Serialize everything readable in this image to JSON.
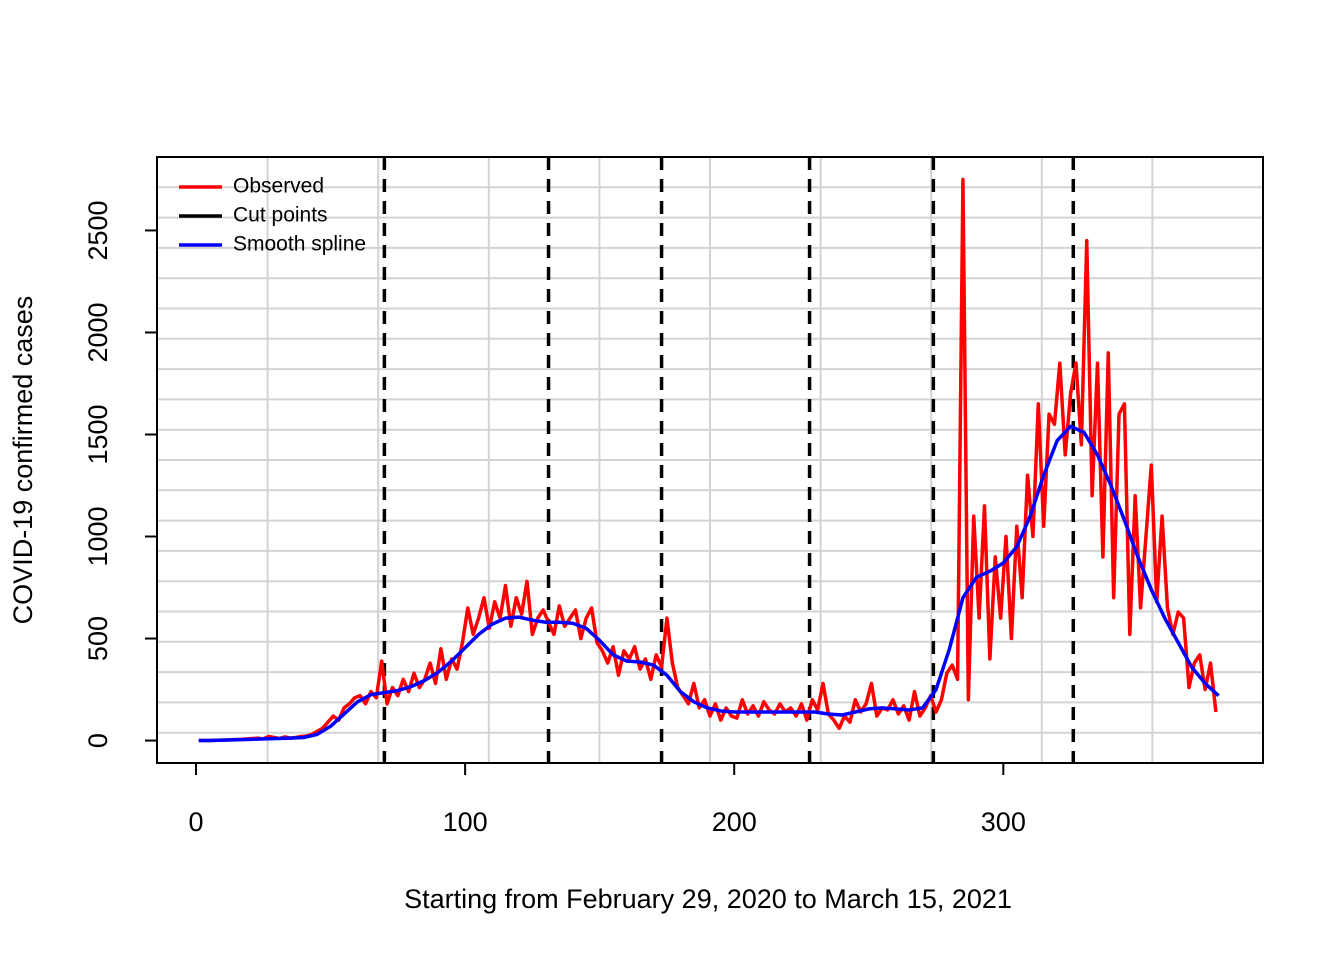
{
  "chart_data": {
    "type": "line",
    "xlabel": "Starting from February 29, 2020 to March 15, 2021",
    "ylabel": "COVID-19 confirmed cases",
    "xlim": [
      -14.5,
      396.5
    ],
    "ylim": [
      -110,
      2860
    ],
    "xticks": [
      0,
      100,
      200,
      300
    ],
    "yticks": [
      0,
      500,
      1000,
      1500,
      2000,
      2500
    ],
    "grid": {
      "nx": 10,
      "ny": 20,
      "color": "#d3d3d3"
    },
    "legend": "top-left",
    "series": [
      {
        "name": "Observed",
        "color": "#ff0000",
        "style": "line",
        "x": [
          1,
          3,
          5,
          7,
          9,
          11,
          13,
          15,
          17,
          19,
          21,
          23,
          25,
          27,
          29,
          31,
          33,
          35,
          37,
          39,
          41,
          43,
          45,
          47,
          49,
          51,
          53,
          55,
          57,
          59,
          61,
          63,
          65,
          67,
          69,
          71,
          73,
          75,
          77,
          79,
          81,
          83,
          85,
          87,
          89,
          91,
          93,
          95,
          97,
          99,
          101,
          103,
          105,
          107,
          109,
          111,
          113,
          115,
          117,
          119,
          121,
          123,
          125,
          127,
          129,
          131,
          133,
          135,
          137,
          139,
          141,
          143,
          145,
          147,
          149,
          151,
          153,
          155,
          157,
          159,
          161,
          163,
          165,
          167,
          169,
          171,
          173,
          175,
          177,
          179,
          181,
          183,
          185,
          187,
          189,
          191,
          193,
          195,
          197,
          199,
          201,
          203,
          205,
          207,
          209,
          211,
          213,
          215,
          217,
          219,
          221,
          223,
          225,
          227,
          229,
          231,
          233,
          235,
          237,
          239,
          241,
          243,
          245,
          247,
          249,
          251,
          253,
          255,
          257,
          259,
          261,
          263,
          265,
          267,
          269,
          271,
          273,
          275,
          277,
          279,
          281,
          283,
          285,
          287,
          289,
          291,
          293,
          295,
          297,
          299,
          301,
          303,
          305,
          307,
          309,
          311,
          313,
          315,
          317,
          319,
          321,
          323,
          325,
          327,
          329,
          331,
          333,
          335,
          337,
          339,
          341,
          343,
          345,
          347,
          349,
          351,
          353,
          355,
          357,
          359,
          361,
          363,
          365,
          367,
          369,
          371,
          373,
          375,
          377,
          379
        ],
        "values": [
          0,
          0,
          0,
          1,
          2,
          3,
          4,
          5,
          6,
          8,
          10,
          12,
          8,
          20,
          15,
          10,
          18,
          12,
          15,
          20,
          22,
          30,
          45,
          60,
          90,
          120,
          100,
          160,
          180,
          210,
          220,
          180,
          240,
          210,
          390,
          180,
          260,
          220,
          300,
          240,
          330,
          260,
          300,
          380,
          280,
          450,
          300,
          400,
          350,
          480,
          650,
          520,
          600,
          700,
          550,
          680,
          600,
          760,
          560,
          700,
          620,
          780,
          520,
          600,
          640,
          580,
          520,
          660,
          560,
          600,
          640,
          500,
          600,
          650,
          480,
          440,
          380,
          460,
          320,
          440,
          400,
          460,
          350,
          400,
          300,
          420,
          360,
          600,
          380,
          260,
          220,
          180,
          280,
          160,
          200,
          120,
          180,
          100,
          160,
          120,
          110,
          200,
          130,
          170,
          120,
          190,
          150,
          130,
          180,
          140,
          160,
          120,
          180,
          100,
          200,
          150,
          280,
          130,
          100,
          60,
          120,
          90,
          200,
          140,
          180,
          280,
          120,
          160,
          150,
          200,
          130,
          170,
          100,
          240,
          120,
          160,
          220,
          140,
          200,
          330,
          370,
          300,
          2750,
          200,
          1100,
          600,
          1150,
          400,
          900,
          600,
          1000,
          500,
          1050,
          700,
          1300,
          1000,
          1650,
          1050,
          1600,
          1550,
          1850,
          1400,
          1700,
          1850,
          1450,
          2450,
          1200,
          1850,
          900,
          1900,
          700,
          1600,
          1650,
          520,
          1200,
          650,
          1000,
          1350,
          680,
          1100,
          650,
          520,
          630,
          600,
          260,
          380,
          420,
          250,
          380,
          140
        ]
      },
      {
        "name": "Cut points",
        "color": "#000000",
        "style": "vline",
        "x": [
          70,
          131,
          173,
          228,
          274,
          326
        ]
      },
      {
        "name": "Smooth spline",
        "color": "#0000ff",
        "style": "line",
        "x": [
          1,
          5,
          10,
          15,
          20,
          25,
          30,
          35,
          40,
          45,
          50,
          55,
          60,
          65,
          70,
          75,
          80,
          85,
          90,
          95,
          100,
          105,
          110,
          115,
          120,
          125,
          130,
          135,
          140,
          145,
          150,
          155,
          160,
          165,
          170,
          175,
          180,
          185,
          190,
          195,
          200,
          205,
          210,
          215,
          220,
          225,
          230,
          235,
          240,
          245,
          250,
          255,
          260,
          265,
          270,
          275,
          280,
          285,
          290,
          295,
          300,
          305,
          310,
          315,
          320,
          325,
          330,
          335,
          340,
          345,
          350,
          355,
          360,
          365,
          370,
          375,
          380
        ],
        "values": [
          0,
          0,
          2,
          4,
          6,
          8,
          10,
          12,
          15,
          30,
          70,
          130,
          190,
          225,
          235,
          245,
          265,
          295,
          335,
          390,
          455,
          520,
          570,
          600,
          605,
          590,
          580,
          580,
          575,
          550,
          490,
          420,
          390,
          385,
          370,
          320,
          240,
          190,
          160,
          145,
          140,
          140,
          140,
          140,
          140,
          140,
          140,
          130,
          125,
          140,
          155,
          160,
          155,
          150,
          160,
          250,
          450,
          700,
          800,
          830,
          870,
          950,
          1100,
          1300,
          1470,
          1540,
          1510,
          1400,
          1250,
          1080,
          900,
          740,
          600,
          480,
          360,
          280,
          220
        ]
      }
    ]
  }
}
